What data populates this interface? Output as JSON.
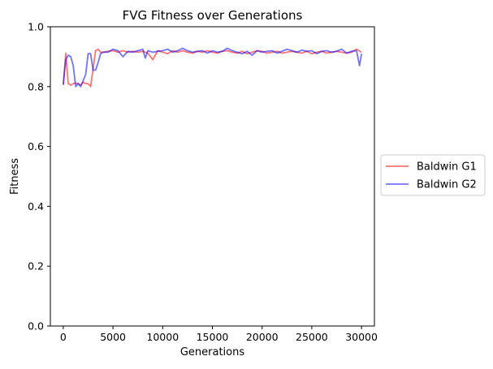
{
  "chart_data": {
    "type": "line",
    "title": "FVG Fitness over Generations",
    "xlabel": "Generations",
    "ylabel": "Fitness",
    "xlim": [
      -1300,
      31300
    ],
    "ylim": [
      0.0,
      1.0
    ],
    "xticks": [
      0,
      5000,
      10000,
      15000,
      20000,
      25000,
      30000
    ],
    "yticks": [
      0.0,
      0.2,
      0.4,
      0.6,
      0.8,
      1.0
    ],
    "xtick_labels": [
      "0",
      "5000",
      "10000",
      "15000",
      "20000",
      "25000",
      "30000"
    ],
    "ytick_labels": [
      "0.0",
      "0.2",
      "0.4",
      "0.6",
      "0.8",
      "1.0"
    ],
    "grid": false,
    "legend_position": "right",
    "series": [
      {
        "name": "Baldwin G1",
        "color": "#ff0000",
        "alpha": 0.55,
        "x": [
          0,
          250,
          500,
          750,
          1000,
          1250,
          1500,
          1750,
          2000,
          2250,
          2500,
          2750,
          3000,
          3250,
          3500,
          3750,
          4000,
          4500,
          5000,
          5500,
          6000,
          6500,
          7000,
          7500,
          8000,
          8500,
          9000,
          9500,
          10000,
          10500,
          11000,
          11500,
          12000,
          12500,
          13000,
          13500,
          14000,
          14500,
          15000,
          15500,
          16000,
          16500,
          17000,
          17500,
          18000,
          18500,
          19000,
          19500,
          20000,
          20500,
          21000,
          21500,
          22000,
          22500,
          23000,
          23500,
          24000,
          24500,
          25000,
          25500,
          26000,
          26500,
          27000,
          27500,
          28000,
          28500,
          29000,
          29500,
          30000
        ],
        "values": [
          0.805,
          0.912,
          0.81,
          0.805,
          0.81,
          0.812,
          0.81,
          0.805,
          0.815,
          0.81,
          0.81,
          0.8,
          0.86,
          0.92,
          0.925,
          0.915,
          0.915,
          0.918,
          0.92,
          0.915,
          0.92,
          0.915,
          0.918,
          0.915,
          0.918,
          0.912,
          0.89,
          0.92,
          0.915,
          0.91,
          0.92,
          0.915,
          0.92,
          0.915,
          0.912,
          0.918,
          0.915,
          0.92,
          0.915,
          0.912,
          0.918,
          0.92,
          0.915,
          0.912,
          0.918,
          0.91,
          0.915,
          0.92,
          0.918,
          0.912,
          0.915,
          0.918,
          0.912,
          0.915,
          0.918,
          0.915,
          0.912,
          0.918,
          0.91,
          0.915,
          0.918,
          0.912,
          0.915,
          0.918,
          0.915,
          0.912,
          0.915,
          0.925,
          0.915
        ]
      },
      {
        "name": "Baldwin G2",
        "color": "#0000ff",
        "alpha": 0.55,
        "x": [
          0,
          250,
          500,
          750,
          1000,
          1250,
          1500,
          1750,
          2000,
          2250,
          2500,
          2750,
          3000,
          3250,
          3500,
          3750,
          4000,
          4500,
          5000,
          5500,
          6000,
          6500,
          7000,
          7500,
          8000,
          8250,
          8500,
          9000,
          9500,
          10000,
          10500,
          11000,
          11500,
          12000,
          12500,
          13000,
          13500,
          14000,
          14500,
          15000,
          15500,
          16000,
          16500,
          17000,
          17500,
          18000,
          18500,
          19000,
          19500,
          20000,
          20500,
          21000,
          21500,
          22000,
          22500,
          23000,
          23500,
          24000,
          24500,
          25000,
          25500,
          26000,
          26500,
          27000,
          27500,
          28000,
          28500,
          29000,
          29500,
          29800,
          30000
        ],
        "values": [
          0.808,
          0.89,
          0.905,
          0.9,
          0.87,
          0.8,
          0.81,
          0.8,
          0.82,
          0.84,
          0.91,
          0.91,
          0.855,
          0.855,
          0.88,
          0.91,
          0.915,
          0.915,
          0.925,
          0.92,
          0.9,
          0.918,
          0.915,
          0.92,
          0.925,
          0.895,
          0.92,
          0.915,
          0.918,
          0.92,
          0.925,
          0.915,
          0.92,
          0.928,
          0.92,
          0.915,
          0.918,
          0.92,
          0.912,
          0.92,
          0.915,
          0.918,
          0.928,
          0.92,
          0.915,
          0.91,
          0.918,
          0.905,
          0.92,
          0.915,
          0.918,
          0.92,
          0.912,
          0.918,
          0.925,
          0.92,
          0.915,
          0.922,
          0.918,
          0.92,
          0.91,
          0.918,
          0.92,
          0.915,
          0.918,
          0.925,
          0.912,
          0.918,
          0.92,
          0.87,
          0.91
        ]
      }
    ]
  }
}
